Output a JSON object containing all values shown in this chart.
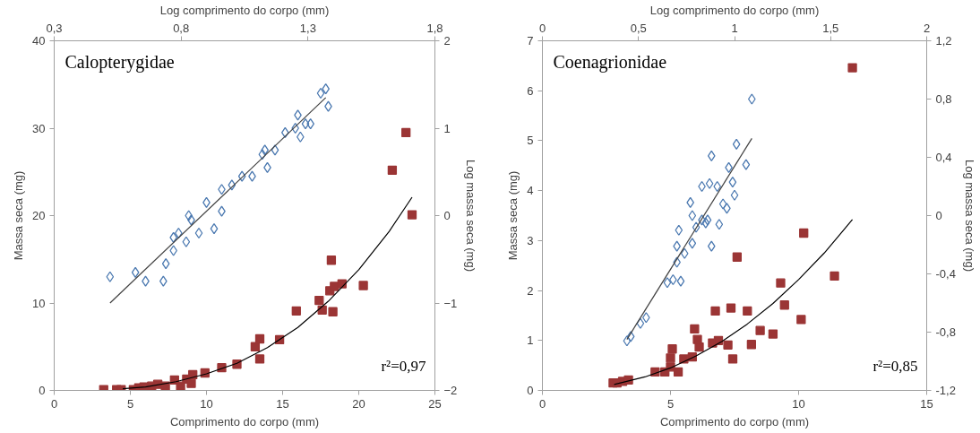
{
  "chart_data": [
    {
      "type": "scatter",
      "title": "Calopterygidae",
      "xlabel": "Log comprimento do corpo (mm)",
      "ylabel": "Massa seca (mg)",
      "x2label": "Comprimento do corpo (mm)",
      "y2label": "Log massa seca (mg)",
      "xlim": [
        0.3,
        1.8
      ],
      "xticks": [
        {
          "value": 0.3,
          "label": "0,3"
        },
        {
          "value": 0.8,
          "label": "0,8"
        },
        {
          "value": 1.3,
          "label": "1,3"
        },
        {
          "value": 1.8,
          "label": "1,8"
        }
      ],
      "ylim": [
        0,
        40
      ],
      "yticks": [
        0,
        10,
        20,
        30,
        40
      ],
      "x2lim": [
        0,
        25
      ],
      "x2ticks": [
        0,
        5,
        10,
        15,
        20,
        25
      ],
      "y2lim": [
        -2,
        2
      ],
      "y2ticks": [
        -2,
        -1,
        0,
        1,
        2
      ],
      "annotations": [
        "r²=0,97"
      ],
      "series": [
        {
          "marker": "square",
          "axis": "x2",
          "color": "#9b3535",
          "x": [
            3.25,
            4.1,
            4.4,
            5.2,
            5.55,
            5.9,
            6.4,
            6.8,
            7.3,
            7.9,
            8.3,
            8.7,
            9.0,
            9.1,
            9.9,
            11.0,
            12.0,
            13.2,
            13.5,
            13.5,
            14.8,
            15.9,
            17.4,
            17.6,
            18.1,
            18.2,
            18.3,
            18.4,
            18.9,
            20.3,
            22.2,
            23.1,
            23.5
          ],
          "values": [
            0.1,
            0.1,
            0.1,
            0.1,
            0.3,
            0.4,
            0.5,
            0.7,
            0.5,
            1.2,
            0.5,
            1.3,
            0.8,
            1.8,
            2.0,
            2.6,
            3.0,
            5.0,
            5.9,
            3.6,
            5.8,
            9.1,
            10.3,
            9.2,
            11.4,
            14.9,
            9.0,
            11.9,
            12.2,
            12.0,
            25.2,
            29.5,
            20.1
          ]
        },
        {
          "type": "line",
          "axis": "x2",
          "color": "#000000",
          "x": [
            4.5,
            6,
            8,
            10,
            12,
            14,
            16,
            18,
            20,
            22,
            23.5
          ],
          "values": [
            0.2,
            0.4,
            1.0,
            1.9,
            3.1,
            4.9,
            7.2,
            10.2,
            13.8,
            18.2,
            22.1
          ]
        },
        {
          "marker": "diamond",
          "axis": "y2",
          "color": "#4a78b0",
          "x": [
            0.52,
            0.62,
            0.66,
            0.73,
            0.74,
            0.77,
            0.77,
            0.79,
            0.82,
            0.84,
            0.87,
            0.93,
            0.83,
            0.9,
            0.96,
            0.96,
            1.0,
            1.04,
            1.08,
            1.14,
            1.12,
            1.17,
            1.13,
            1.21,
            1.25,
            1.26,
            1.27,
            1.31,
            1.29,
            1.35,
            1.37,
            1.38
          ],
          "values": [
            -0.7,
            -0.65,
            -0.75,
            -0.75,
            -0.55,
            -0.4,
            -0.25,
            -0.2,
            -0.3,
            -0.05,
            -0.2,
            -0.15,
            0.0,
            0.15,
            0.05,
            0.3,
            0.35,
            0.45,
            0.45,
            0.55,
            0.7,
            0.75,
            0.75,
            0.95,
            1.0,
            1.15,
            0.9,
            1.05,
            1.05,
            1.4,
            1.45,
            1.25
          ]
        },
        {
          "type": "line",
          "axis": "y2",
          "color": "#404040",
          "x": [
            0.52,
            1.37
          ],
          "values": [
            -1.0,
            1.35
          ]
        }
      ]
    },
    {
      "type": "scatter",
      "title": "Coenagrionidae",
      "xlabel": "Log comprimento do corpo (mm)",
      "ylabel": "Massa seca (mg)",
      "x2label": "Comprimento do corpo (mm)",
      "y2label": "Log massa seca (mg)",
      "xlim": [
        0,
        2
      ],
      "xticks": [
        0,
        {
          "value": 0.5,
          "label": "0,5"
        },
        1,
        {
          "value": 1.5,
          "label": "1,5"
        },
        2
      ],
      "ylim": [
        0,
        7
      ],
      "yticks": [
        0,
        1,
        2,
        3,
        4,
        5,
        6,
        7
      ],
      "x2lim": [
        0,
        15
      ],
      "x2ticks": [
        0,
        5,
        10,
        15
      ],
      "y2lim": [
        -1.2,
        1.2
      ],
      "y2ticks": [
        {
          "value": -1.2,
          "label": "-1,2"
        },
        {
          "value": -0.8,
          "label": "-0,8"
        },
        {
          "value": -0.4,
          "label": "-0,4"
        },
        0,
        {
          "value": 0.4,
          "label": "0,4"
        },
        {
          "value": 0.8,
          "label": "0,8"
        },
        {
          "value": 1.2,
          "label": "1,2"
        }
      ],
      "annotations": [
        "r²=0,85"
      ],
      "series": [
        {
          "marker": "square",
          "axis": "x2",
          "color": "#9b3535",
          "x": [
            2.76,
            2.91,
            3.13,
            3.36,
            4.4,
            4.78,
            5.0,
            5.07,
            5.0,
            5.3,
            5.52,
            5.85,
            5.94,
            6.05,
            6.12,
            6.64,
            6.75,
            6.87,
            7.24,
            7.36,
            7.43,
            7.6,
            8.0,
            8.16,
            8.5,
            9.0,
            9.3,
            9.45,
            10.1,
            10.2,
            11.4,
            12.1
          ],
          "values": [
            0.15,
            0.15,
            0.18,
            0.21,
            0.37,
            0.37,
            0.47,
            0.83,
            0.65,
            0.37,
            0.63,
            0.67,
            1.23,
            1.02,
            0.87,
            0.95,
            1.59,
            1.0,
            0.91,
            1.65,
            0.63,
            2.67,
            1.59,
            0.92,
            1.2,
            1.13,
            2.15,
            1.71,
            1.42,
            3.15,
            2.29,
            6.46
          ]
        },
        {
          "type": "line",
          "axis": "x2",
          "color": "#000000",
          "x": [
            2.8,
            4,
            5,
            6,
            7,
            8,
            9,
            10,
            11,
            12.1
          ],
          "values": [
            0.12,
            0.27,
            0.45,
            0.69,
            0.98,
            1.33,
            1.74,
            2.22,
            2.75,
            3.42
          ]
        },
        {
          "marker": "diamond",
          "axis": "y2",
          "color": "#4a78b0",
          "x": [
            0.44,
            0.46,
            0.51,
            0.54,
            0.65,
            0.68,
            0.72,
            0.7,
            0.7,
            0.74,
            0.71,
            0.78,
            0.88,
            0.8,
            0.85,
            0.92,
            0.86,
            0.83,
            0.78,
            0.77,
            0.83,
            0.87,
            0.91,
            0.88,
            0.94,
            0.96,
            0.99,
            0.97,
            1.0,
            1.01,
            1.06,
            1.09
          ],
          "values": [
            -0.86,
            -0.83,
            -0.74,
            -0.7,
            -0.46,
            -0.44,
            -0.45,
            -0.32,
            -0.21,
            -0.26,
            -0.1,
            -0.19,
            -0.21,
            -0.08,
            -0.05,
            -0.06,
            -0.03,
            -0.03,
            0.0,
            0.09,
            0.2,
            0.22,
            0.2,
            0.41,
            0.08,
            0.05,
            0.23,
            0.33,
            0.14,
            0.49,
            0.35,
            0.8
          ]
        },
        {
          "type": "line",
          "axis": "y2",
          "color": "#404040",
          "x": [
            0.44,
            1.09
          ],
          "values": [
            -0.85,
            0.53
          ]
        }
      ]
    }
  ]
}
